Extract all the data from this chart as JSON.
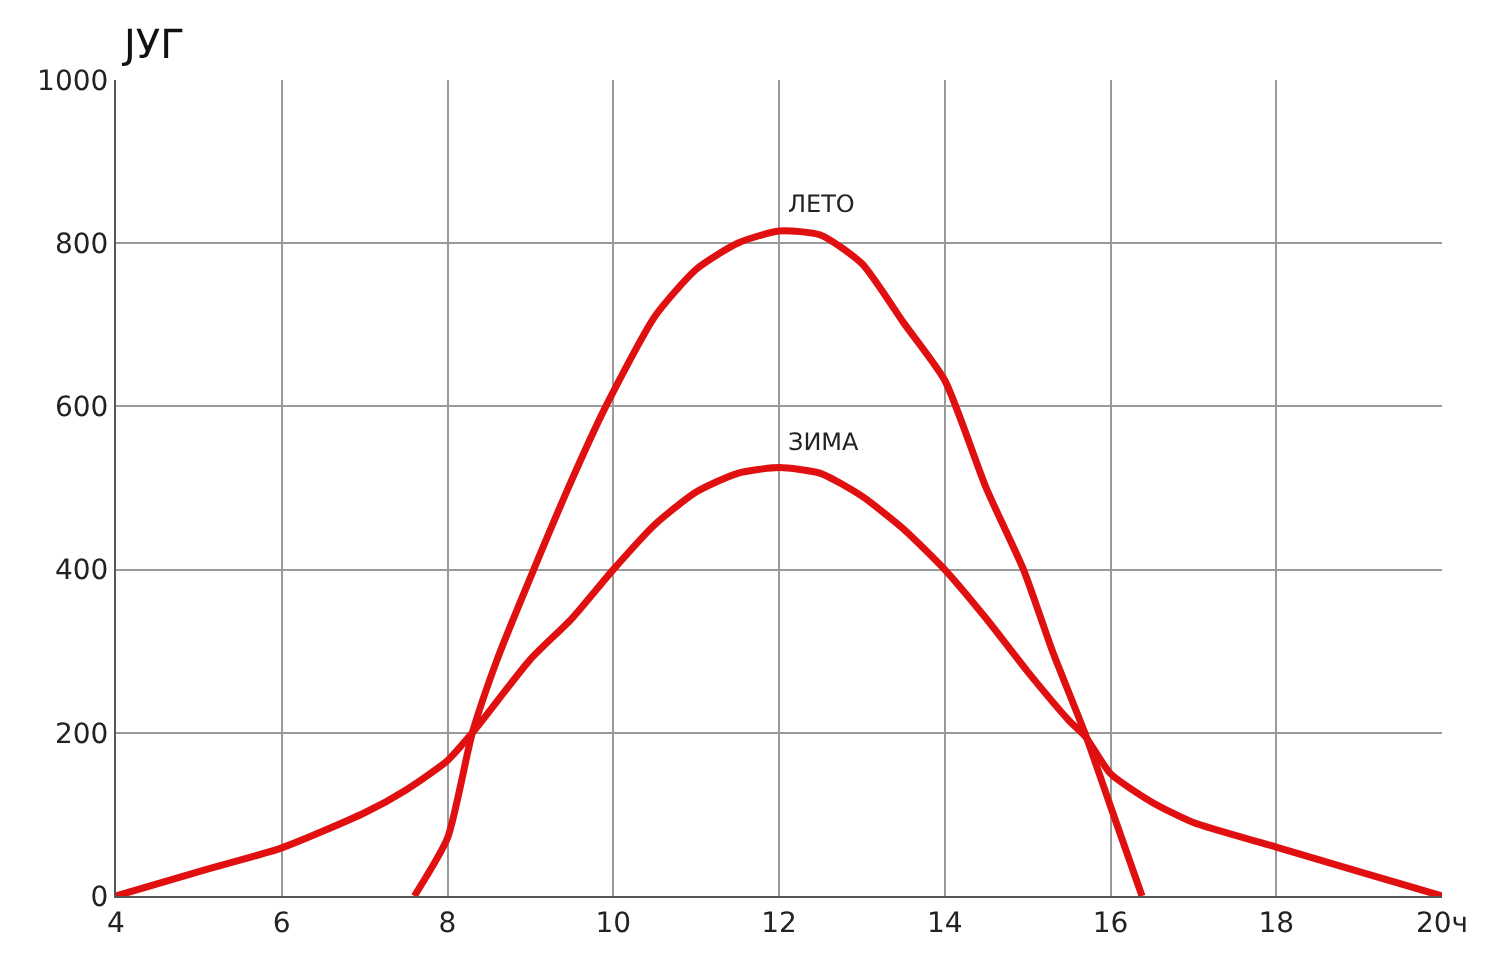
{
  "chart_data": {
    "type": "line",
    "ylabel": "ЈУГ",
    "xlim": [
      4,
      20
    ],
    "ylim": [
      0,
      1000
    ],
    "xticks": [
      4,
      6,
      8,
      10,
      12,
      14,
      16,
      18,
      {
        "value": 20,
        "label": "20ч"
      }
    ],
    "yticks": [
      0,
      200,
      400,
      600,
      800,
      1000
    ],
    "grid": true,
    "legend": false,
    "marker": "none",
    "line_style": "solid",
    "series": [
      {
        "name": "ЛЕТО",
        "color": "#e01010",
        "x": [
          7.6,
          8.0,
          8.3,
          8.6,
          9.04,
          9.5,
          9.91,
          10.5,
          11,
          11.5,
          12,
          12.5,
          13,
          13.5,
          14,
          14.5,
          14.95,
          15.3,
          15.69,
          16.0,
          16.38
        ],
        "values": [
          0,
          71,
          200,
          290,
          400,
          510,
          600,
          710,
          768,
          800,
          815,
          810,
          775,
          703,
          632,
          500,
          400,
          300,
          200,
          110,
          0
        ]
      },
      {
        "name": "ЗИМА",
        "color": "#e01010",
        "x": [
          4,
          5,
          6,
          7,
          7.5,
          8,
          8.3,
          9,
          9.5,
          10,
          10.5,
          11,
          11.5,
          12,
          12.5,
          13,
          13.5,
          14,
          14.5,
          15,
          15.5,
          15.7,
          16,
          16.5,
          17,
          18,
          19,
          20
        ],
        "values": [
          0,
          30,
          59,
          102,
          130,
          166,
          200,
          290,
          340,
          400,
          455,
          495,
          518,
          525,
          518,
          490,
          450,
          400,
          340,
          275,
          215,
          195,
          150,
          115,
          90,
          60,
          30,
          0
        ]
      }
    ]
  }
}
